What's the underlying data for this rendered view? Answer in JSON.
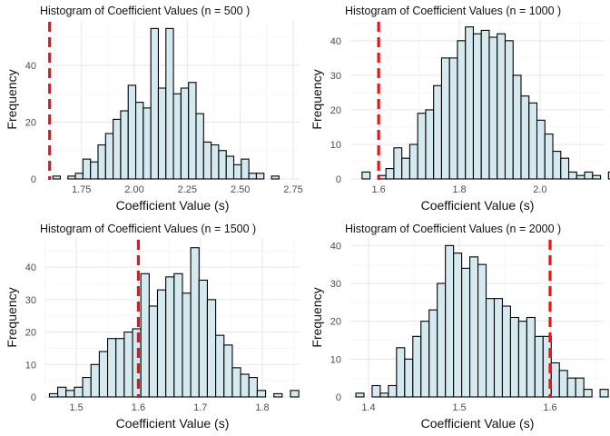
{
  "colors": {
    "bar_fill": "#d5eaf0",
    "bar_stroke": "#000000",
    "ref_line": "#e8141b",
    "grid": "#e6e6e6"
  },
  "chart_data": [
    {
      "type": "bar",
      "title": "Histogram of Coefficient Values (n = 500 )",
      "xlabel": "Coefficient Value (s)",
      "ylabel": "Frequency",
      "x_range": [
        1.58,
        2.78
      ],
      "xticks": [
        1.75,
        2.0,
        2.25,
        2.5,
        2.75
      ],
      "xtick_labels": [
        "1.75",
        "2.00",
        "2.25",
        "2.50",
        "2.75"
      ],
      "ylim": [
        0,
        56
      ],
      "yticks": [
        0,
        20,
        40
      ],
      "bin_start": 1.615,
      "bin_width": 0.0356,
      "values": [
        1,
        0,
        1,
        2,
        7,
        6,
        12,
        16,
        21,
        24,
        33,
        27,
        25,
        53,
        32,
        53,
        30,
        32,
        34,
        23,
        13,
        12,
        10,
        8,
        5,
        7,
        2,
        2,
        0,
        1
      ],
      "ref_line_x": 1.6,
      "grid": true
    },
    {
      "type": "bar",
      "title": "Histogram of Coefficient Values (n = 1000 )",
      "xlabel": "Coefficient Value (s)",
      "ylabel": "Frequency",
      "x_range": [
        1.53,
        2.16
      ],
      "xticks": [
        1.6,
        1.8,
        2.0
      ],
      "xtick_labels": [
        "1.6",
        "1.8",
        "2.0"
      ],
      "ylim": [
        0,
        46
      ],
      "yticks": [
        0,
        10,
        20,
        30,
        40
      ],
      "bin_start": 1.559,
      "bin_width": 0.0197,
      "values": [
        2,
        0,
        1,
        3,
        9,
        6,
        10,
        19,
        20,
        27,
        35,
        35,
        40,
        44,
        42,
        43,
        41,
        42,
        40,
        30,
        24,
        22,
        17,
        13,
        8,
        6,
        2,
        1,
        2,
        1,
        0,
        2
      ],
      "ref_line_x": 1.6,
      "grid": true
    },
    {
      "type": "bar",
      "title": "Histogram of Coefficient Values (n = 1500 )",
      "xlabel": "Coefficient Value (s)",
      "ylabel": "Frequency",
      "x_range": [
        1.45,
        1.86
      ],
      "xticks": [
        1.5,
        1.6,
        1.7,
        1.8
      ],
      "xtick_labels": [
        "1.5",
        "1.6",
        "1.7",
        "1.8"
      ],
      "ylim": [
        0,
        49
      ],
      "yticks": [
        0,
        10,
        20,
        30,
        40
      ],
      "bin_start": 1.4565,
      "bin_width": 0.01341,
      "values": [
        1,
        3,
        2,
        3,
        6,
        10,
        14,
        18,
        18,
        20,
        21,
        38,
        28,
        33,
        37,
        38,
        32,
        46,
        36,
        30,
        19,
        16,
        9,
        7,
        6,
        2,
        0,
        1,
        0,
        2
      ],
      "ref_line_x": 1.6,
      "grid": true
    },
    {
      "type": "bar",
      "title": "Histogram of Coefficient Values (n = 2000 )",
      "xlabel": "Coefficient Value (s)",
      "ylabel": "Frequency",
      "x_range": [
        1.38,
        1.66
      ],
      "xticks": [
        1.4,
        1.5,
        1.6
      ],
      "xtick_labels": [
        "1.4",
        "1.5",
        "1.6"
      ],
      "ylim": [
        0,
        42
      ],
      "yticks": [
        0,
        10,
        20,
        30,
        40
      ],
      "bin_start": 1.386,
      "bin_width": 0.00897,
      "values": [
        1,
        0,
        3,
        1,
        3,
        13,
        10,
        16,
        20,
        23,
        30,
        40,
        38,
        34,
        37,
        35,
        26,
        26,
        24,
        21,
        20,
        21,
        16,
        16,
        9,
        7,
        5,
        5,
        2,
        0,
        2
      ],
      "ref_line_x": 1.6,
      "grid": true
    }
  ]
}
